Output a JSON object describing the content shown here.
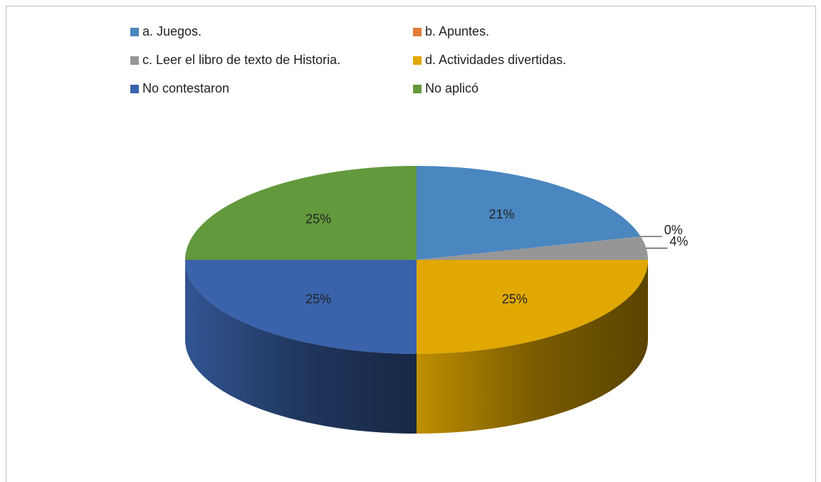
{
  "chart_data": {
    "type": "pie3d",
    "categories": [
      "a. Juegos.",
      "b.  Apuntes.",
      "c.  Leer el libro de texto de Historia.",
      "d.    Actividades divertidas.",
      "No contestaron",
      "No aplicó"
    ],
    "values": [
      21,
      0,
      4,
      25,
      25,
      25
    ],
    "value_labels": [
      "21%",
      "0%",
      "4%",
      "25%",
      "25%",
      "25%"
    ],
    "colors": [
      "#4a86c0",
      "#e07b39",
      "#969696",
      "#e0a800",
      "#3a63ab",
      "#63993d"
    ],
    "legend": "top"
  }
}
